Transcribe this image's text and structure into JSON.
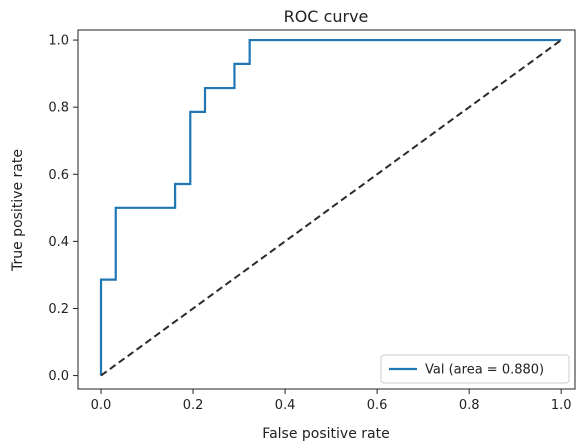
{
  "chart_data": {
    "type": "line",
    "title": "ROC curve",
    "xlabel": "False positive rate",
    "ylabel": "True positive rate",
    "xlim": [
      -0.05,
      1.03
    ],
    "ylim": [
      -0.04,
      1.03
    ],
    "xticks": [
      0.0,
      0.2,
      0.4,
      0.6,
      0.8,
      1.0
    ],
    "xtick_labels": [
      "0.0",
      "0.2",
      "0.4",
      "0.6",
      "0.8",
      "1.0"
    ],
    "yticks": [
      0.0,
      0.2,
      0.4,
      0.6,
      0.8,
      1.0
    ],
    "ytick_labels": [
      "0.0",
      "0.2",
      "0.4",
      "0.6",
      "0.8",
      "1.0"
    ],
    "grid": false,
    "legend_position": "bottom-right",
    "series": [
      {
        "name": "Val (area = 0.880)",
        "color": "#1f77b4",
        "style": "solid",
        "x": [
          0.0,
          0.0,
          0.032,
          0.032,
          0.161,
          0.161,
          0.194,
          0.194,
          0.226,
          0.226,
          0.29,
          0.29,
          0.323,
          0.323,
          1.0
        ],
        "y": [
          0.0,
          0.286,
          0.286,
          0.5,
          0.5,
          0.571,
          0.571,
          0.786,
          0.786,
          0.857,
          0.857,
          0.929,
          0.929,
          1.0,
          1.0
        ]
      },
      {
        "color": "#2b2b2b",
        "style": "dashed",
        "x": [
          0.0,
          1.0
        ],
        "y": [
          0.0,
          1.0
        ]
      }
    ]
  }
}
